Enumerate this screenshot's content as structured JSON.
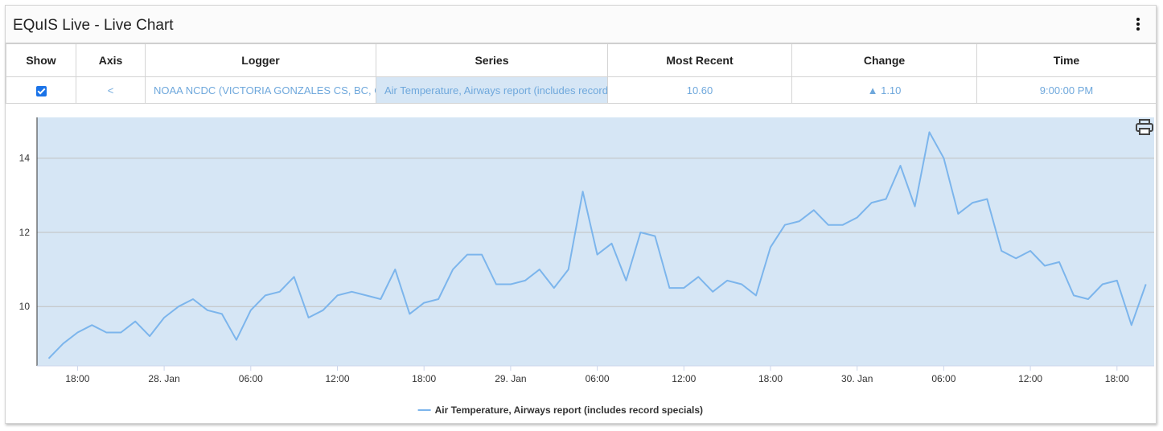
{
  "header": {
    "title": "EQuIS Live - Live Chart"
  },
  "table": {
    "columns": [
      "Show",
      "Axis",
      "Logger",
      "Series",
      "Most Recent",
      "Change",
      "Time"
    ],
    "row": {
      "show_checked": true,
      "axis": "<",
      "logger": "NOAA NCDC (VICTORIA GONZALES CS, BC, CAN",
      "series": "Air Temperature, Airways report (includes record",
      "most_recent": "10.60",
      "change": "▲ 1.10",
      "time": "9:00:00 PM"
    }
  },
  "colors": {
    "series_line": "#7cb5ec",
    "plot_band": "#d6e6f5",
    "link_text": "#6fa8dc",
    "checkbox": "#1a73e8"
  },
  "icons": {
    "menu": "vertical-dots-icon",
    "print": "printer-icon"
  },
  "chart_data": {
    "type": "line",
    "title": "",
    "xlabel": "",
    "ylabel": "",
    "ylim": [
      8.4,
      15.1
    ],
    "yticks": [
      10,
      12,
      14
    ],
    "x_ticks": [
      "18:00",
      "28. Jan",
      "06:00",
      "12:00",
      "18:00",
      "29. Jan",
      "06:00",
      "12:00",
      "18:00",
      "30. Jan",
      "06:00",
      "12:00",
      "18:00"
    ],
    "x_start": "27. Jan 16:00",
    "x_interval": "1 hour",
    "grid": true,
    "legend_position": "bottom-center",
    "series": [
      {
        "name": "Air Temperature, Airways report (includes record specials)",
        "values": [
          8.6,
          9.0,
          9.3,
          9.5,
          9.3,
          9.3,
          9.6,
          9.2,
          9.7,
          10.0,
          10.2,
          9.9,
          9.8,
          9.1,
          9.9,
          10.3,
          10.4,
          10.8,
          9.7,
          9.9,
          10.3,
          10.4,
          10.3,
          10.2,
          11.0,
          9.8,
          10.1,
          10.2,
          11.0,
          11.4,
          11.4,
          10.6,
          10.6,
          10.7,
          11.0,
          10.5,
          11.0,
          13.1,
          11.4,
          11.7,
          10.7,
          12.0,
          11.9,
          10.5,
          10.5,
          10.8,
          10.4,
          10.7,
          10.6,
          10.3,
          11.6,
          12.2,
          12.3,
          12.6,
          12.2,
          12.2,
          12.4,
          12.8,
          12.9,
          13.8,
          12.7,
          14.7,
          14.0,
          12.5,
          12.8,
          12.9,
          11.5,
          11.3,
          11.5,
          11.1,
          11.2,
          10.3,
          10.2,
          10.6,
          10.7,
          9.5,
          10.6
        ]
      }
    ]
  }
}
